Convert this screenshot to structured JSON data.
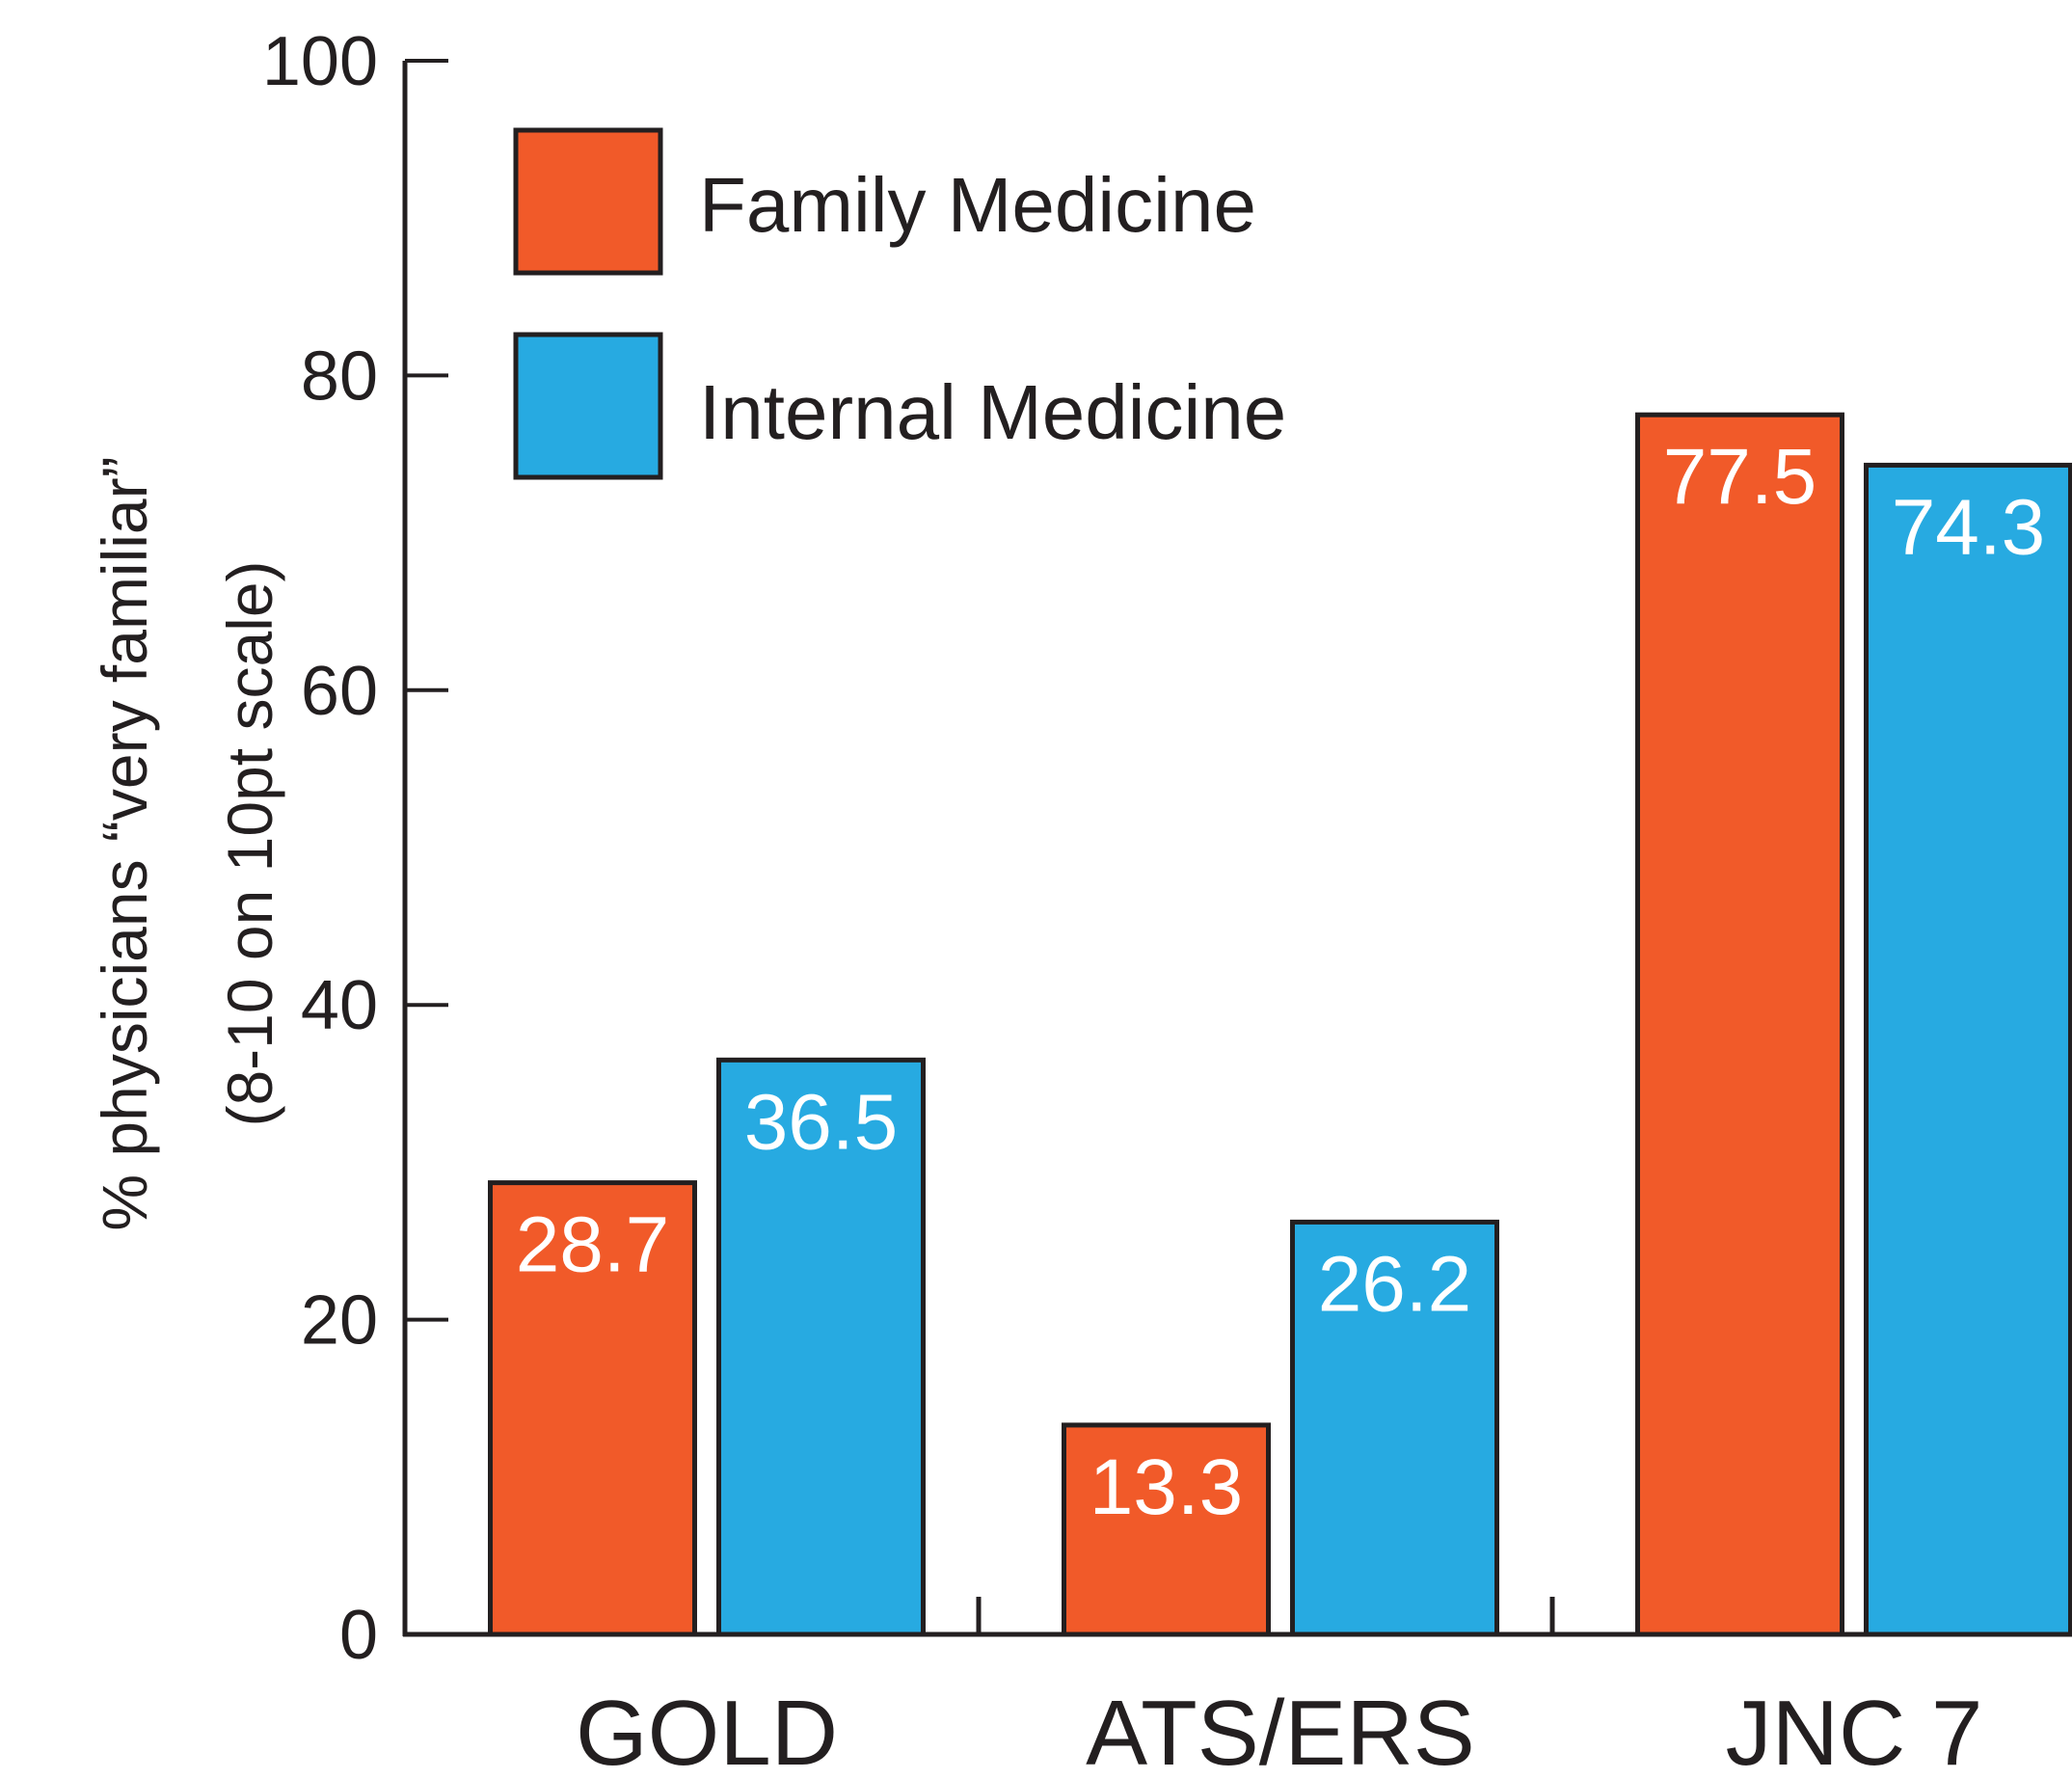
{
  "chart_data": {
    "type": "bar",
    "categories": [
      "GOLD",
      "ATS/ERS",
      "JNC 7"
    ],
    "series": [
      {
        "name": "Family Medicine",
        "values": [
          28.7,
          13.3,
          77.5
        ],
        "color": "#f15a29"
      },
      {
        "name": "Internal Medicine",
        "values": [
          36.5,
          26.2,
          74.3
        ],
        "color": "#27aae1"
      }
    ],
    "data_labels": [
      [
        "28.7",
        "13.3",
        "77.5"
      ],
      [
        "36.5",
        "26.2",
        "74.3"
      ]
    ],
    "ylabel_lines": [
      "% physicians “very familiar”",
      "(8-10 on 10pt scale)"
    ],
    "ylim": [
      0,
      100
    ],
    "yticks": [
      "0",
      "20",
      "40",
      "60",
      "80",
      "100"
    ],
    "ytick_values": [
      0,
      20,
      40,
      60,
      80,
      100
    ],
    "legend_position": "top-left",
    "grid": false,
    "bar_outline_color": "#231f20",
    "axis_color": "#231f20"
  }
}
